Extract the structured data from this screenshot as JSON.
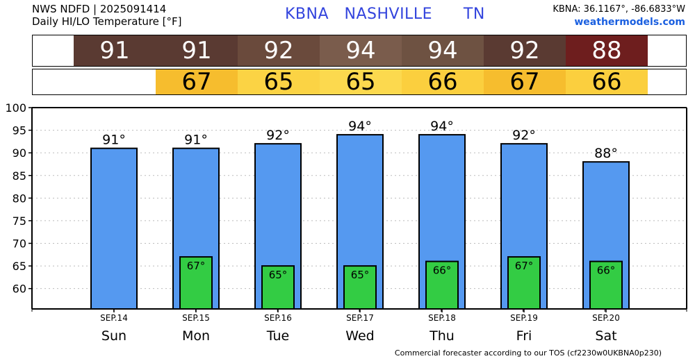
{
  "header": {
    "line1": "NWS NDFD | 2025091414",
    "line2": "Daily HI/LO Temperature [°F]",
    "station": "KBNA   NASHVILLE      TN",
    "coords": "KBNA: 36.1167°, -86.6833°W",
    "site": "weathermodels.com"
  },
  "footer": "Commercial forecaster according to our TOS (cf2230w0UKBNA0p230)",
  "hi_strip": [
    {
      "text": "91",
      "color": "#5a3a32"
    },
    {
      "text": "91",
      "color": "#5a3a32"
    },
    {
      "text": "92",
      "color": "#6a4a3c"
    },
    {
      "text": "94",
      "color": "#7a5c4c"
    },
    {
      "text": "94",
      "color": "#6e5242"
    },
    {
      "text": "92",
      "color": "#5a3a32"
    },
    {
      "text": "88",
      "color": "#6e1e1e"
    }
  ],
  "lo_strip": [
    {
      "text": "67",
      "color": "#f6bd2e"
    },
    {
      "text": "65",
      "color": "#fbd344"
    },
    {
      "text": "65",
      "color": "#fcd94e"
    },
    {
      "text": "66",
      "color": "#fbcf3e"
    },
    {
      "text": "67",
      "color": "#f6bd2e"
    },
    {
      "text": "66",
      "color": "#fbcf3e"
    }
  ],
  "chart_data": {
    "type": "bar",
    "categories": [
      "SEP.14",
      "SEP.15",
      "SEP.16",
      "SEP.17",
      "SEP.18",
      "SEP.19",
      "SEP.20"
    ],
    "days": [
      "Sun",
      "Mon",
      "Tue",
      "Wed",
      "Thu",
      "Fri",
      "Sat"
    ],
    "series": [
      {
        "values": [
          91,
          91,
          92,
          94,
          94,
          92,
          88
        ],
        "labels": [
          "91°",
          "91°",
          "92°",
          "94°",
          "94°",
          "92°",
          "88°"
        ],
        "color": "#5599f0"
      },
      {
        "values": [
          null,
          67,
          65,
          65,
          66,
          67,
          66
        ],
        "labels": [
          "",
          "67°",
          "65°",
          "65°",
          "66°",
          "67°",
          "66°"
        ],
        "color": "#33cc44"
      }
    ],
    "yticks": [
      "60",
      "65",
      "70",
      "75",
      "80",
      "85",
      "90",
      "95",
      "100"
    ],
    "ylim": [
      55.5,
      100
    ],
    "grid": true
  }
}
